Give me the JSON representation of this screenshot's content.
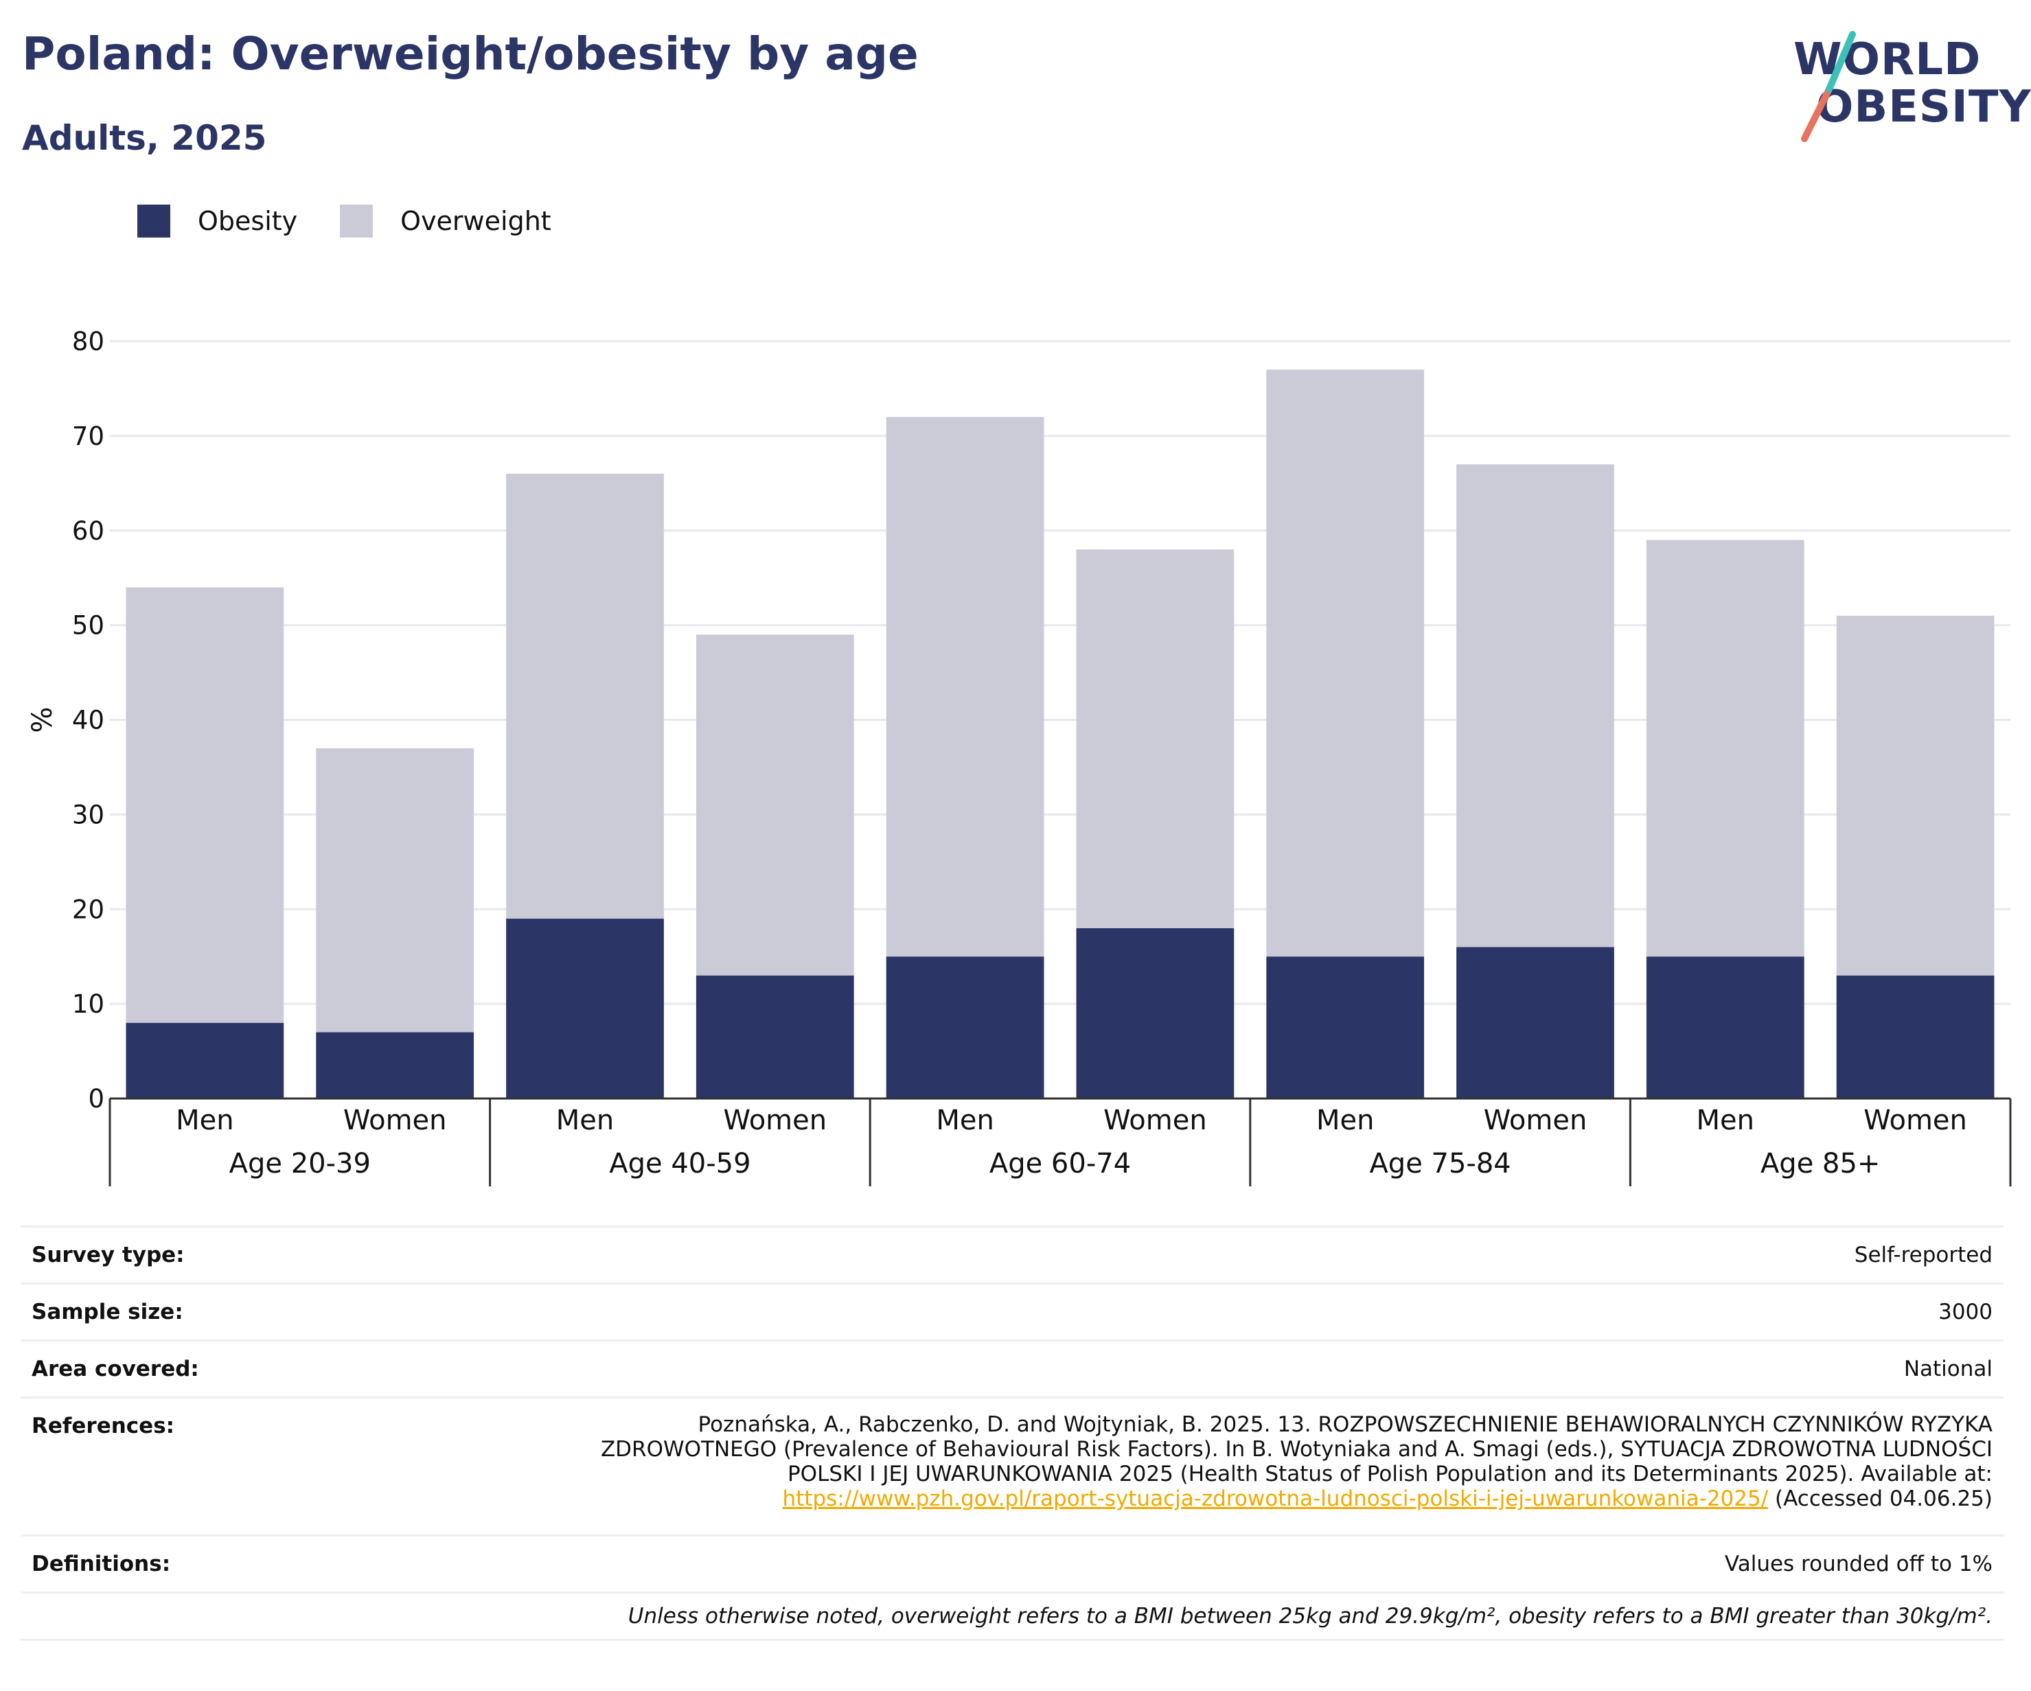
{
  "header": {
    "title": "Poland: Overweight/obesity by age",
    "subtitle": "Adults, 2025"
  },
  "logo": {
    "line1": "WORLD",
    "line2": "OBESITY"
  },
  "legend": [
    {
      "label": "Obesity",
      "color": "#2b3566"
    },
    {
      "label": "Overweight",
      "color": "#cacbd7"
    }
  ],
  "chart_data": {
    "type": "bar",
    "stacked": true,
    "ylabel": "%",
    "ylim": [
      0,
      80
    ],
    "yticks": [
      0,
      10,
      20,
      30,
      40,
      50,
      60,
      70,
      80
    ],
    "grid": true,
    "legend_position": "top-left",
    "groups": [
      "Age 20-39",
      "Age 40-59",
      "Age 60-74",
      "Age 75-84",
      "Age 85+"
    ],
    "subcategories": [
      "Men",
      "Women"
    ],
    "categories": [
      "Men",
      "Women",
      "Men",
      "Women",
      "Men",
      "Women",
      "Men",
      "Women",
      "Men",
      "Women"
    ],
    "series": [
      {
        "name": "Obesity",
        "color": "#2b3566",
        "values": [
          8,
          7,
          19,
          13,
          15,
          18,
          15,
          16,
          15,
          13
        ]
      },
      {
        "name": "Overweight",
        "color": "#cacbd7",
        "values": [
          46,
          30,
          47,
          36,
          57,
          40,
          62,
          51,
          44,
          38
        ]
      }
    ]
  },
  "meta": {
    "survey_type": {
      "label": "Survey type:",
      "value": "Self-reported"
    },
    "sample_size": {
      "label": "Sample size:",
      "value": "3000"
    },
    "area_covered": {
      "label": "Area covered:",
      "value": "National"
    },
    "references": {
      "label": "References:",
      "line1": "Poznańska, A., Rabczenko, D. and Wojtyniak, B. 2025. 13. ROZPOWSZECHNIENIE BEHAWIORALNYCH CZYNNIKÓW RYZYKA",
      "line2": "ZDROWOTNEGO (Prevalence of Behavioural Risk Factors). In B. Wotyniaka and A. Smagi (eds.), SYTUACJA ZDROWOTNA LUDNOŚCI",
      "line3": "POLSKI I JEJ UWARUNKOWANIA 2025 (Health Status of Polish Population and its Determinants 2025). Available at:",
      "link": "https://www.pzh.gov.pl/raport-sytuacja-zdrowotna-ludnosci-polski-i-jej-uwarunkowania-2025/",
      "accessed": " (Accessed 04.06.25)"
    },
    "definitions": {
      "label": "Definitions:",
      "value": "Values rounded off to 1%"
    },
    "note": "Unless otherwise noted, overweight refers to a BMI between 25kg and 29.9kg/m², obesity refers to a BMI greater than 30kg/m²."
  }
}
